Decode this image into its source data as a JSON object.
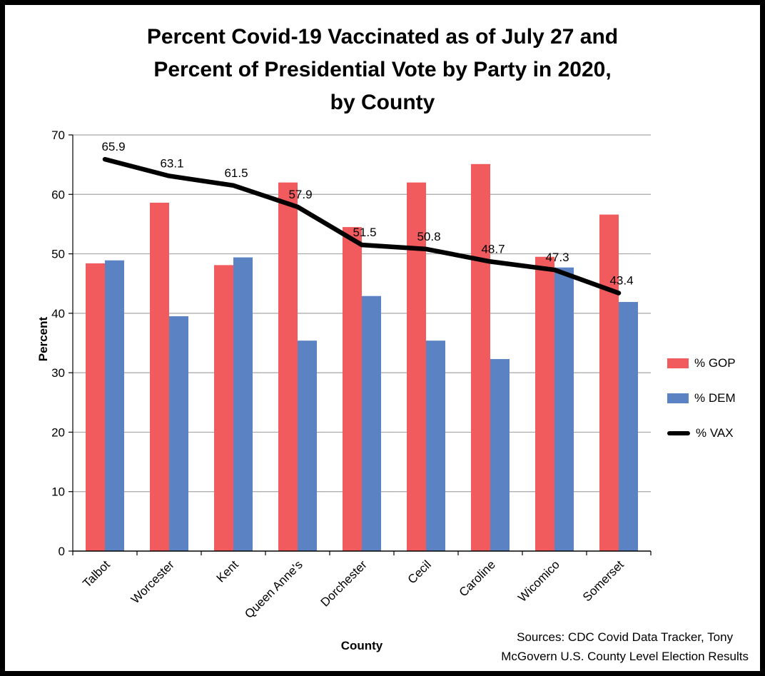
{
  "frame": {
    "border_color": "#000000",
    "background": "#ffffff"
  },
  "chart_data": {
    "type": "bar",
    "subtype": "grouped-bars-with-line-overlay",
    "title_lines": [
      "Percent Covid-19 Vaccinated as of July 27 and",
      "Percent of Presidential Vote by Party in 2020,",
      "by County"
    ],
    "categories": [
      "Talbot",
      "Worcester",
      "Kent",
      "Queen Anne's",
      "Dorchester",
      "Cecil",
      "Caroline",
      "Wicomico",
      "Somerset"
    ],
    "series": [
      {
        "name": "% GOP",
        "type": "bar",
        "color": "#F15B5E",
        "values": [
          48.4,
          58.6,
          48.1,
          62.0,
          54.5,
          62.0,
          65.1,
          49.5,
          56.6
        ]
      },
      {
        "name": "% DEM",
        "type": "bar",
        "color": "#5B83C4",
        "values": [
          48.9,
          39.5,
          49.4,
          35.4,
          42.9,
          35.4,
          32.3,
          47.7,
          41.9
        ]
      },
      {
        "name": "% VAX",
        "type": "line",
        "color": "#000000",
        "data_labels": true,
        "values": [
          65.9,
          63.1,
          61.5,
          57.9,
          51.5,
          50.8,
          48.7,
          47.3,
          43.4
        ]
      }
    ],
    "xlabel": "County",
    "ylabel": "Percent",
    "ylim": [
      0,
      70
    ],
    "ytick_step": 10,
    "yticks": [
      0,
      10,
      20,
      30,
      40,
      50,
      60,
      70
    ],
    "grid": true,
    "gridline_color": "#A6A6A6",
    "legend_position": "right"
  },
  "sources_lines": [
    "Sources: CDC Covid Data Tracker, Tony",
    "McGovern U.S. County Level Election Results"
  ]
}
